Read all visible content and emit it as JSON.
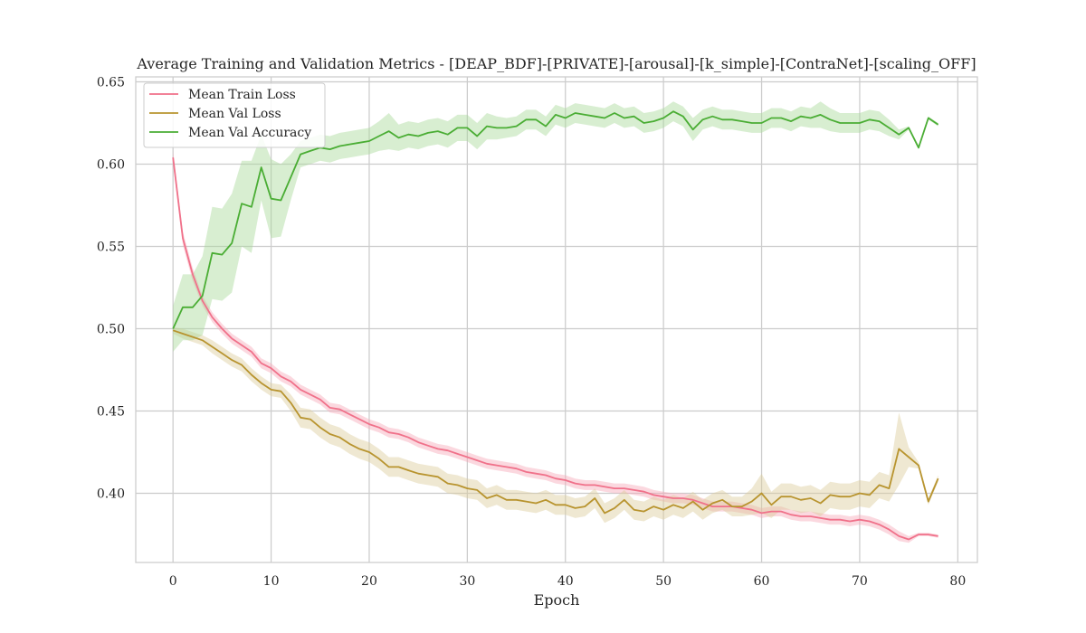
{
  "chart_data": {
    "type": "line",
    "title": "Average Training and Validation Metrics - [DEAP_BDF]-[PRIVATE]-[arousal]-[k_simple]-[ContraNet]-[scaling_OFF]",
    "xlabel": "Epoch",
    "ylabel": "",
    "xlim": [
      -3.8,
      82
    ],
    "ylim": [
      0.358,
      0.653
    ],
    "xticks": [
      0,
      10,
      20,
      30,
      40,
      50,
      60,
      70,
      80
    ],
    "yticks": [
      0.4,
      0.45,
      0.5,
      0.55,
      0.6,
      0.65
    ],
    "grid": true,
    "legend": "top-left",
    "series": [
      {
        "name": "Mean Train Loss",
        "color": "#f0718a",
        "band_color": "#f7a8b8",
        "x": [
          0,
          1,
          2,
          3,
          4,
          5,
          6,
          7,
          8,
          9,
          10,
          11,
          12,
          13,
          14,
          15,
          16,
          17,
          18,
          19,
          20,
          21,
          22,
          23,
          24,
          25,
          26,
          27,
          28,
          29,
          30,
          31,
          32,
          33,
          34,
          35,
          36,
          37,
          38,
          39,
          40,
          41,
          42,
          43,
          44,
          45,
          46,
          47,
          48,
          49,
          50,
          51,
          52,
          53,
          54,
          55,
          56,
          57,
          58,
          59,
          60,
          61,
          62,
          63,
          64,
          65,
          66,
          67,
          68,
          69,
          70,
          71,
          72,
          73,
          74,
          75,
          76,
          77,
          78
        ],
        "y": [
          0.604,
          0.555,
          0.533,
          0.517,
          0.507,
          0.5,
          0.494,
          0.49,
          0.486,
          0.479,
          0.476,
          0.471,
          0.468,
          0.463,
          0.46,
          0.457,
          0.452,
          0.451,
          0.448,
          0.445,
          0.442,
          0.44,
          0.437,
          0.436,
          0.434,
          0.431,
          0.429,
          0.427,
          0.426,
          0.424,
          0.422,
          0.42,
          0.418,
          0.417,
          0.416,
          0.415,
          0.413,
          0.412,
          0.411,
          0.409,
          0.408,
          0.406,
          0.405,
          0.405,
          0.404,
          0.403,
          0.403,
          0.402,
          0.401,
          0.399,
          0.398,
          0.397,
          0.397,
          0.396,
          0.394,
          0.392,
          0.392,
          0.392,
          0.391,
          0.39,
          0.388,
          0.389,
          0.389,
          0.387,
          0.386,
          0.386,
          0.385,
          0.384,
          0.384,
          0.383,
          0.384,
          0.383,
          0.381,
          0.378,
          0.374,
          0.372,
          0.375,
          0.375,
          0.374
        ],
        "band": [
          0.004,
          0.004,
          0.004,
          0.003,
          0.003,
          0.003,
          0.003,
          0.003,
          0.003,
          0.003,
          0.003,
          0.003,
          0.003,
          0.003,
          0.003,
          0.003,
          0.003,
          0.003,
          0.003,
          0.003,
          0.003,
          0.003,
          0.003,
          0.003,
          0.003,
          0.003,
          0.003,
          0.003,
          0.003,
          0.003,
          0.003,
          0.003,
          0.003,
          0.003,
          0.003,
          0.003,
          0.003,
          0.003,
          0.003,
          0.003,
          0.003,
          0.003,
          0.003,
          0.003,
          0.003,
          0.003,
          0.003,
          0.003,
          0.003,
          0.003,
          0.003,
          0.003,
          0.003,
          0.003,
          0.003,
          0.003,
          0.003,
          0.003,
          0.003,
          0.003,
          0.003,
          0.003,
          0.003,
          0.003,
          0.003,
          0.003,
          0.003,
          0.003,
          0.003,
          0.003,
          0.003,
          0.003,
          0.003,
          0.003,
          0.003,
          0.002,
          0.001,
          0.001,
          0.001
        ]
      },
      {
        "name": "Mean Val Loss",
        "color": "#b8942f",
        "band_color": "#dccb9c",
        "x": [
          0,
          1,
          2,
          3,
          4,
          5,
          6,
          7,
          8,
          9,
          10,
          11,
          12,
          13,
          14,
          15,
          16,
          17,
          18,
          19,
          20,
          21,
          22,
          23,
          24,
          25,
          26,
          27,
          28,
          29,
          30,
          31,
          32,
          33,
          34,
          35,
          36,
          37,
          38,
          39,
          40,
          41,
          42,
          43,
          44,
          45,
          46,
          47,
          48,
          49,
          50,
          51,
          52,
          53,
          54,
          55,
          56,
          57,
          58,
          59,
          60,
          61,
          62,
          63,
          64,
          65,
          66,
          67,
          68,
          69,
          70,
          71,
          72,
          73,
          74,
          75,
          76,
          77,
          78
        ],
        "y": [
          0.499,
          0.497,
          0.495,
          0.493,
          0.489,
          0.485,
          0.481,
          0.478,
          0.472,
          0.467,
          0.463,
          0.462,
          0.455,
          0.446,
          0.445,
          0.44,
          0.436,
          0.434,
          0.43,
          0.427,
          0.425,
          0.421,
          0.416,
          0.416,
          0.414,
          0.412,
          0.411,
          0.41,
          0.406,
          0.405,
          0.403,
          0.402,
          0.397,
          0.399,
          0.396,
          0.396,
          0.395,
          0.394,
          0.396,
          0.393,
          0.393,
          0.391,
          0.392,
          0.397,
          0.388,
          0.391,
          0.396,
          0.39,
          0.389,
          0.392,
          0.39,
          0.393,
          0.391,
          0.395,
          0.39,
          0.394,
          0.396,
          0.392,
          0.392,
          0.395,
          0.4,
          0.393,
          0.398,
          0.398,
          0.396,
          0.397,
          0.394,
          0.399,
          0.398,
          0.398,
          0.4,
          0.399,
          0.405,
          0.403,
          0.427,
          0.422,
          0.417,
          0.395,
          0.409
        ],
        "band": [
          0.002,
          0.003,
          0.003,
          0.003,
          0.004,
          0.004,
          0.004,
          0.004,
          0.004,
          0.004,
          0.004,
          0.004,
          0.005,
          0.006,
          0.006,
          0.006,
          0.006,
          0.006,
          0.006,
          0.006,
          0.006,
          0.006,
          0.006,
          0.006,
          0.006,
          0.006,
          0.006,
          0.006,
          0.006,
          0.006,
          0.006,
          0.006,
          0.006,
          0.006,
          0.006,
          0.006,
          0.006,
          0.006,
          0.006,
          0.006,
          0.006,
          0.006,
          0.006,
          0.006,
          0.006,
          0.006,
          0.006,
          0.006,
          0.006,
          0.006,
          0.006,
          0.006,
          0.006,
          0.006,
          0.006,
          0.006,
          0.006,
          0.006,
          0.006,
          0.008,
          0.012,
          0.008,
          0.008,
          0.008,
          0.008,
          0.008,
          0.008,
          0.008,
          0.008,
          0.008,
          0.008,
          0.008,
          0.008,
          0.008,
          0.022,
          0.006,
          0.002,
          0.002,
          0.002
        ]
      },
      {
        "name": "Mean Val Accuracy",
        "color": "#4aad34",
        "band_color": "#a8d99a",
        "x": [
          0,
          1,
          2,
          3,
          4,
          5,
          6,
          7,
          8,
          9,
          10,
          11,
          12,
          13,
          14,
          15,
          16,
          17,
          18,
          19,
          20,
          21,
          22,
          23,
          24,
          25,
          26,
          27,
          28,
          29,
          30,
          31,
          32,
          33,
          34,
          35,
          36,
          37,
          38,
          39,
          40,
          41,
          42,
          43,
          44,
          45,
          46,
          47,
          48,
          49,
          50,
          51,
          52,
          53,
          54,
          55,
          56,
          57,
          58,
          59,
          60,
          61,
          62,
          63,
          64,
          65,
          66,
          67,
          68,
          69,
          70,
          71,
          72,
          73,
          74,
          75,
          76,
          77,
          78
        ],
        "y": [
          0.5,
          0.513,
          0.513,
          0.52,
          0.546,
          0.545,
          0.552,
          0.576,
          0.574,
          0.598,
          0.579,
          0.578,
          0.592,
          0.606,
          0.608,
          0.61,
          0.609,
          0.611,
          0.612,
          0.613,
          0.614,
          0.617,
          0.62,
          0.616,
          0.618,
          0.617,
          0.619,
          0.62,
          0.618,
          0.622,
          0.622,
          0.617,
          0.623,
          0.622,
          0.622,
          0.623,
          0.627,
          0.627,
          0.623,
          0.63,
          0.628,
          0.631,
          0.63,
          0.629,
          0.628,
          0.631,
          0.628,
          0.629,
          0.625,
          0.626,
          0.628,
          0.632,
          0.629,
          0.621,
          0.627,
          0.629,
          0.627,
          0.627,
          0.626,
          0.625,
          0.625,
          0.628,
          0.628,
          0.626,
          0.629,
          0.628,
          0.63,
          0.627,
          0.625,
          0.625,
          0.625,
          0.627,
          0.626,
          0.622,
          0.618,
          0.622,
          0.61,
          0.628,
          0.624
        ],
        "band": [
          0.014,
          0.02,
          0.02,
          0.024,
          0.028,
          0.028,
          0.03,
          0.026,
          0.028,
          0.02,
          0.024,
          0.022,
          0.014,
          0.008,
          0.008,
          0.008,
          0.008,
          0.008,
          0.008,
          0.008,
          0.008,
          0.009,
          0.011,
          0.008,
          0.008,
          0.008,
          0.008,
          0.008,
          0.008,
          0.008,
          0.008,
          0.008,
          0.008,
          0.007,
          0.006,
          0.006,
          0.006,
          0.006,
          0.006,
          0.006,
          0.006,
          0.006,
          0.006,
          0.006,
          0.006,
          0.006,
          0.006,
          0.006,
          0.006,
          0.006,
          0.006,
          0.006,
          0.006,
          0.007,
          0.006,
          0.006,
          0.006,
          0.006,
          0.006,
          0.006,
          0.006,
          0.006,
          0.006,
          0.006,
          0.006,
          0.006,
          0.008,
          0.007,
          0.006,
          0.006,
          0.006,
          0.006,
          0.006,
          0.005,
          0.003,
          0.001,
          0.001,
          0.001,
          0.001
        ]
      }
    ]
  }
}
